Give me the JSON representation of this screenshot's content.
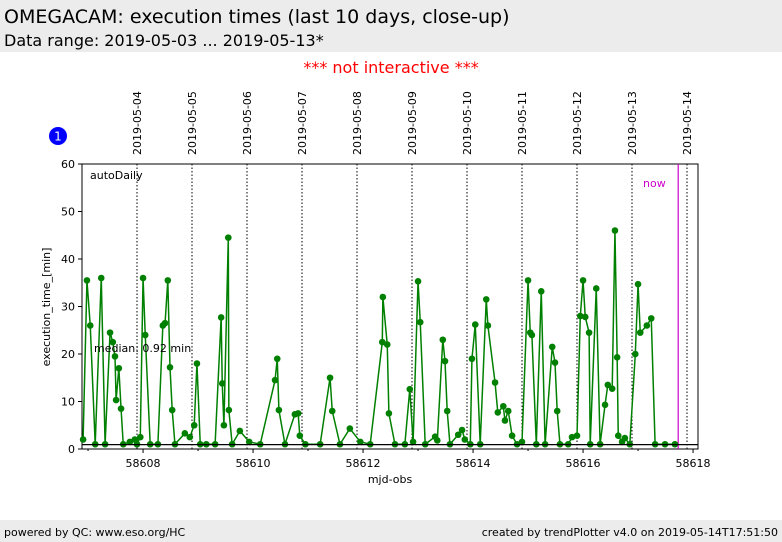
{
  "header": {
    "title": "OMEGACAM: execution times (last 10 days, close-up)",
    "range": "Data range: 2019-05-03 ... 2019-05-13*"
  },
  "notice": "*** not interactive ***",
  "badge": "1",
  "footer": {
    "left": "powered by QC: www.eso.org/HC",
    "right": "created by trendPlotter v4.0 on 2019-05-14T17:51:50"
  },
  "colors": {
    "series": "#008000",
    "now": "#cc00cc",
    "notice": "#ff0000",
    "badge": "#0000ff"
  },
  "chart_data": {
    "type": "line",
    "title": "OMEGACAM: execution times (last 10 days, close-up)",
    "xlabel": "mjd-obs",
    "ylabel": "execution_time_[min]",
    "xlim": [
      58606.89,
      58618.09
    ],
    "ylim": [
      0,
      60
    ],
    "xticks": [
      58608,
      58610,
      58612,
      58614,
      58616,
      58618
    ],
    "yticks": [
      0,
      10,
      20,
      30,
      40,
      50,
      60
    ],
    "dates": [
      {
        "mjd": 58607.89,
        "label": "2019-05-04"
      },
      {
        "mjd": 58608.89,
        "label": "2019-05-05"
      },
      {
        "mjd": 58609.89,
        "label": "2019-05-06"
      },
      {
        "mjd": 58610.89,
        "label": "2019-05-07"
      },
      {
        "mjd": 58611.89,
        "label": "2019-05-08"
      },
      {
        "mjd": 58612.89,
        "label": "2019-05-09"
      },
      {
        "mjd": 58613.89,
        "label": "2019-05-10"
      },
      {
        "mjd": 58614.89,
        "label": "2019-05-11"
      },
      {
        "mjd": 58615.89,
        "label": "2019-05-12"
      },
      {
        "mjd": 58616.89,
        "label": "2019-05-13"
      },
      {
        "mjd": 58617.89,
        "label": "2019-05-14"
      }
    ],
    "series_label": "autoDaily",
    "median": 0.92,
    "median_label": "median: 0.92 min",
    "now": {
      "mjd": 58617.73,
      "label": "now"
    },
    "x": [
      58606.91,
      58606.98,
      58607.04,
      58607.13,
      58607.24,
      58607.31,
      58607.4,
      58607.45,
      58607.49,
      58607.51,
      58607.56,
      58607.6,
      58607.64,
      58607.76,
      58607.85,
      58607.89,
      58607.95,
      58608.0,
      58608.04,
      58608.13,
      58608.27,
      58608.36,
      58608.4,
      58608.45,
      58608.49,
      58608.53,
      58608.58,
      58608.76,
      58608.85,
      58608.93,
      58608.98,
      58609.04,
      58609.15,
      58609.31,
      58609.42,
      58609.44,
      58609.47,
      58609.55,
      58609.56,
      58609.62,
      58609.76,
      58609.93,
      58610.13,
      58610.4,
      58610.44,
      58610.47,
      58610.58,
      58610.76,
      58610.82,
      58610.85,
      58610.95,
      58611.22,
      58611.4,
      58611.44,
      58611.58,
      58611.76,
      58611.95,
      58612.13,
      58612.35,
      58612.36,
      58612.44,
      58612.47,
      58612.58,
      58612.76,
      58612.85,
      58612.91,
      58613.0,
      58613.04,
      58613.13,
      58613.31,
      58613.35,
      58613.45,
      58613.49,
      58613.53,
      58613.58,
      58613.73,
      58613.8,
      58613.85,
      58613.95,
      58613.98,
      58614.04,
      58614.13,
      58614.24,
      58614.27,
      58614.4,
      58614.45,
      58614.55,
      58614.58,
      58614.64,
      58614.71,
      58614.8,
      58614.89,
      58615.0,
      58615.04,
      58615.07,
      58615.15,
      58615.24,
      58615.31,
      58615.44,
      58615.49,
      58615.53,
      58615.58,
      58615.73,
      58615.8,
      58615.89,
      58615.95,
      58616.0,
      58616.04,
      58616.11,
      58616.13,
      58616.24,
      58616.31,
      58616.4,
      58616.45,
      58616.53,
      58616.58,
      58616.62,
      58616.64,
      58616.71,
      58616.76,
      58616.85,
      58616.95,
      58617.0,
      58617.04,
      58617.16,
      58617.24,
      58617.31,
      58617.49,
      58617.67
    ],
    "y": [
      2,
      35.5,
      26,
      1,
      36,
      1,
      24.5,
      22.5,
      19.5,
      10.3,
      17,
      8.5,
      1,
      1.5,
      2,
      1,
      2.5,
      36,
      24,
      1,
      1,
      26,
      26.5,
      35.5,
      17.2,
      8.2,
      1,
      3.3,
      2.5,
      5,
      18,
      1,
      1,
      1,
      27.7,
      13.8,
      5,
      44.5,
      8.2,
      1,
      3.8,
      1.5,
      1,
      14.5,
      19,
      8.2,
      1,
      7.3,
      7.5,
      2.8,
      1,
      1,
      15,
      8,
      1,
      4.3,
      1.5,
      1,
      22.5,
      32,
      22,
      7.5,
      1,
      1,
      12.6,
      1.5,
      35.3,
      26.7,
      1,
      2.6,
      1.8,
      23,
      18.5,
      8,
      1,
      3,
      4,
      2,
      1,
      19,
      26.2,
      1,
      31.5,
      26,
      14,
      7.7,
      9,
      6,
      8,
      2.8,
      1,
      1.5,
      35.5,
      24.5,
      24,
      1,
      33.2,
      1,
      21.5,
      18.2,
      8,
      1,
      1,
      2.5,
      2.8,
      28,
      35.5,
      27.8,
      24.5,
      1,
      33.8,
      1,
      9.3,
      13.5,
      12.7,
      46,
      19.3,
      2.8,
      1.5,
      2.3,
      1,
      20,
      34.7,
      24.5,
      26,
      27.5,
      1,
      1,
      1
    ]
  }
}
